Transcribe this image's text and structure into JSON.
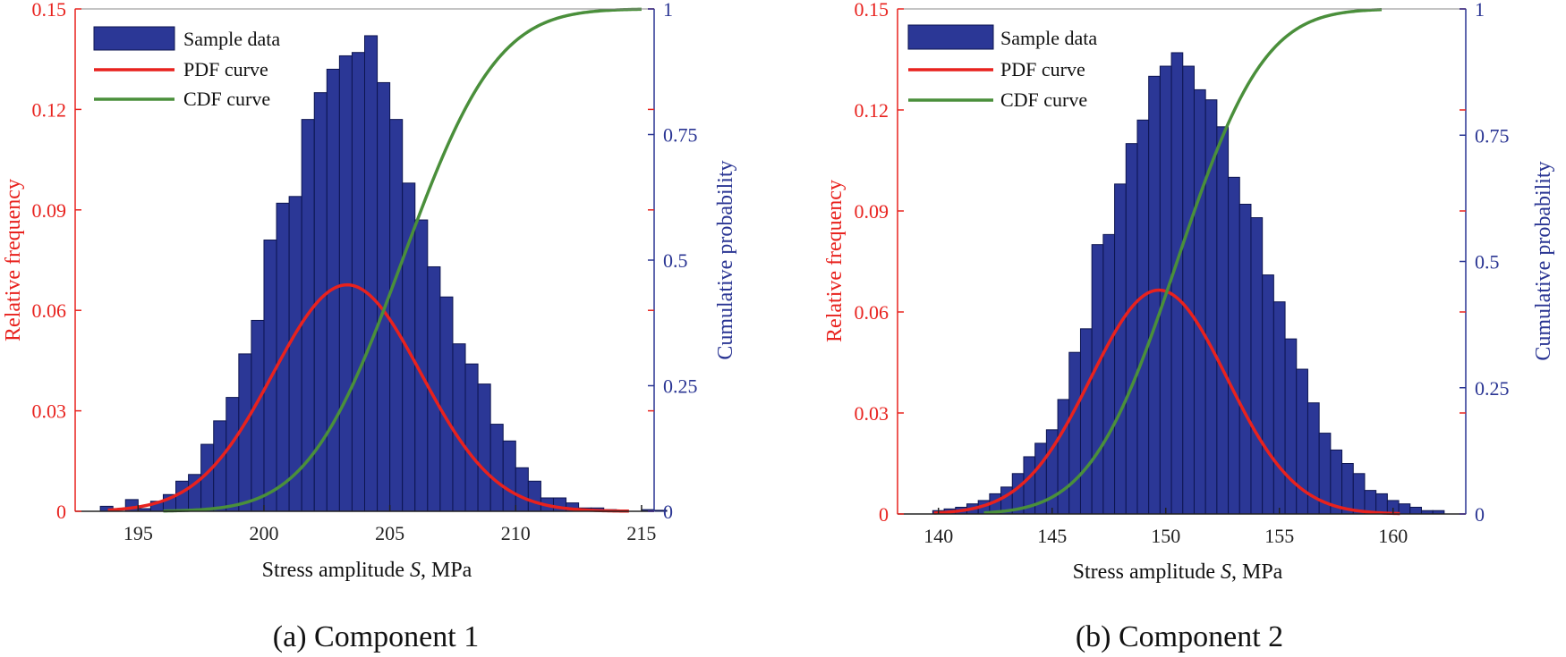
{
  "colors": {
    "bar_fill": "#2b3796",
    "bar_edge": "#0d1550",
    "pdf": "#e8221e",
    "cdf": "#4a8f3b",
    "left_axis": "#e8221e",
    "right_axis": "#2a3593",
    "x_axis": "#222222"
  },
  "chart_data": [
    {
      "type": "bar",
      "caption": "(a) Component 1",
      "xlabel_prefix": "Stress amplitude ",
      "xlabel_symbol": "S",
      "xlabel_suffix": ", MPa",
      "ylabel_left": "Relative frequency",
      "ylabel_right": "Cumulative probability",
      "xlim": [
        192.5,
        215.5
      ],
      "ylim_left": [
        0,
        0.15
      ],
      "ylim_right": [
        0,
        1
      ],
      "xticks": [
        195,
        200,
        205,
        210,
        215
      ],
      "xtick_labels": [
        "195",
        "200",
        "205",
        "210",
        "215"
      ],
      "yticks_left": [
        0,
        0.03,
        0.06,
        0.09,
        0.12,
        0.15
      ],
      "ytick_labels_left": [
        "0",
        "0.03",
        "0.06",
        "0.09",
        "0.12",
        "0.15"
      ],
      "yticks_right": [
        0,
        0.25,
        0.5,
        0.75,
        1
      ],
      "ytick_labels_right": [
        "0",
        "0.25",
        "0.5",
        "0.75",
        "1"
      ],
      "legend": [
        "Sample data",
        "PDF curve",
        "CDF curve"
      ],
      "legend_position": "top-left",
      "bin_width": 0.5,
      "bin_start": 193.5,
      "bin_values": [
        0.0015,
        0,
        0.0035,
        0.0008,
        0.003,
        0.005,
        0.009,
        0.011,
        0.02,
        0.027,
        0.034,
        0.047,
        0.057,
        0.081,
        0.092,
        0.094,
        0.117,
        0.125,
        0.132,
        0.136,
        0.137,
        0.142,
        0.128,
        0.117,
        0.098,
        0.087,
        0.073,
        0.064,
        0.05,
        0.044,
        0.038,
        0.026,
        0.021,
        0.013,
        0.009,
        0.004,
        0.004,
        0.0025,
        0.001,
        0.001,
        0.0005,
        0,
        0,
        0.0005,
        0.0003
      ],
      "pdf": {
        "mean": 203.3,
        "sd": 2.95,
        "scale": 0.5,
        "x_range": [
          193.8,
          214.5
        ]
      },
      "cdf": {
        "mean": 205.5,
        "sd": 2.95,
        "x_range": [
          196.0,
          215.0
        ]
      }
    },
    {
      "type": "bar",
      "caption": "(b) Component 2",
      "xlabel_prefix": "Stress amplitude ",
      "xlabel_symbol": "S",
      "xlabel_suffix": ", MPa",
      "ylabel_left": "Relative frequency",
      "ylabel_right": "Cumulative probability",
      "xlim": [
        138.2,
        163.2
      ],
      "ylim_left": [
        0,
        0.15
      ],
      "ylim_right": [
        0,
        1
      ],
      "xticks": [
        140,
        145,
        150,
        155,
        160
      ],
      "xtick_labels": [
        "140",
        "145",
        "150",
        "155",
        "160"
      ],
      "yticks_left": [
        0,
        0.03,
        0.06,
        0.09,
        0.12,
        0.15
      ],
      "ytick_labels_left": [
        "0",
        "0.03",
        "0.06",
        "0.09",
        "0.12",
        "0.15"
      ],
      "yticks_right": [
        0,
        0.25,
        0.5,
        0.75,
        1
      ],
      "ytick_labels_right": [
        "0",
        "0.25",
        "0.5",
        "0.75",
        "1"
      ],
      "legend": [
        "Sample data",
        "PDF curve",
        "CDF curve"
      ],
      "legend_position": "top-left",
      "bin_width": 0.5,
      "bin_start": 139.75,
      "bin_values": [
        0.001,
        0.0015,
        0.002,
        0.003,
        0.004,
        0.006,
        0.008,
        0.012,
        0.017,
        0.021,
        0.025,
        0.034,
        0.048,
        0.055,
        0.08,
        0.083,
        0.098,
        0.11,
        0.117,
        0.13,
        0.133,
        0.137,
        0.133,
        0.126,
        0.123,
        0.115,
        0.1,
        0.092,
        0.088,
        0.071,
        0.063,
        0.052,
        0.043,
        0.033,
        0.024,
        0.019,
        0.015,
        0.012,
        0.007,
        0.006,
        0.004,
        0.003,
        0.002,
        0.001,
        0.001
      ],
      "pdf": {
        "mean": 149.7,
        "sd": 3.0,
        "scale": 0.5,
        "x_range": [
          139.8,
          160.3
        ]
      },
      "cdf": {
        "mean": 150.5,
        "sd": 3.0,
        "x_range": [
          142.0,
          159.5
        ]
      }
    }
  ]
}
